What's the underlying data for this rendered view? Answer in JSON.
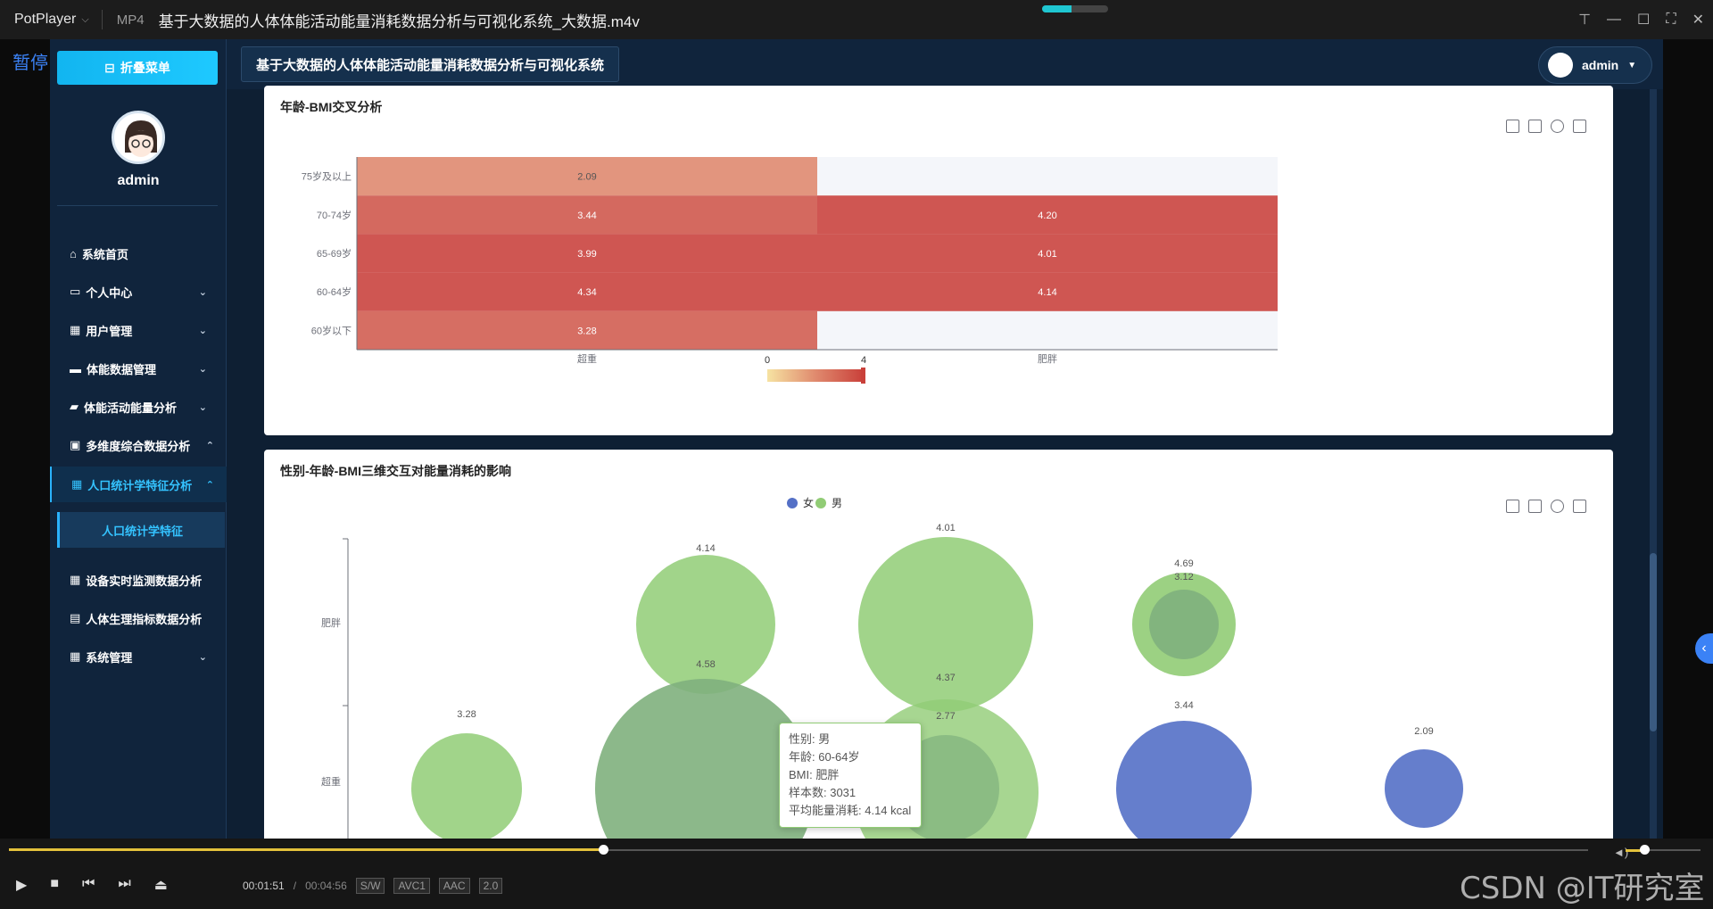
{
  "player": {
    "app_name": "PotPlayer",
    "format": "MP4",
    "file_title": "基于大数据的人体体能活动能量消耗数据分析与可视化系统_大数据.m4v",
    "pause_label": "暂停",
    "time_current": "00:01:51",
    "time_total": "00:04:56",
    "tags": [
      "S/W",
      "AVC1",
      "AAC",
      "2.0"
    ],
    "progress_fraction": 0.375,
    "volume_fraction": 0.2,
    "watermark": "CSDN @IT研究室"
  },
  "sidebar": {
    "collapse_label": "折叠菜单",
    "username": "admin",
    "items": [
      {
        "label": "系统首页",
        "icon": "home-icon",
        "chevron": false
      },
      {
        "label": "个人中心",
        "icon": "profile-icon",
        "chevron": true
      },
      {
        "label": "用户管理",
        "icon": "grid-icon",
        "chevron": true
      },
      {
        "label": "体能数据管理",
        "icon": "ticket-icon",
        "chevron": true
      },
      {
        "label": "体能活动能量分析",
        "icon": "fire-icon",
        "chevron": true
      },
      {
        "label": "多维度综合数据分析",
        "icon": "briefcase-icon",
        "chevron": true
      },
      {
        "label": "人口统计学特征分析",
        "icon": "grid-icon",
        "chevron": true,
        "active": true
      },
      {
        "label": "设备实时监测数据分析",
        "icon": "grid-icon",
        "chevron": false
      },
      {
        "label": "人体生理指标数据分析",
        "icon": "clipboard-icon",
        "chevron": false
      },
      {
        "label": "系统管理",
        "icon": "grid-icon",
        "chevron": true
      }
    ],
    "sub_item": "人口统计学特征"
  },
  "header": {
    "page_title": "基于大数据的人体体能活动能量消耗数据分析与可视化系统",
    "user": "admin"
  },
  "chart_data": [
    {
      "type": "heatmap",
      "title": "年龄-BMI交叉分析",
      "x_categories": [
        "超重",
        "肥胖"
      ],
      "y_categories": [
        "60岁以下",
        "60-64岁",
        "65-69岁",
        "70-74岁",
        "75岁及以上"
      ],
      "cells": [
        {
          "x": "超重",
          "y": "75岁及以上",
          "value": 2.09
        },
        {
          "x": "超重",
          "y": "70-74岁",
          "value": 3.44
        },
        {
          "x": "超重",
          "y": "65-69岁",
          "value": 3.99
        },
        {
          "x": "超重",
          "y": "60-64岁",
          "value": 4.34
        },
        {
          "x": "超重",
          "y": "60岁以下",
          "value": 3.28
        },
        {
          "x": "肥胖",
          "y": "70-74岁",
          "value": 4.2
        },
        {
          "x": "肥胖",
          "y": "65-69岁",
          "value": 4.01
        },
        {
          "x": "肥胖",
          "y": "60-64岁",
          "value": 4.14
        }
      ],
      "visual_map": {
        "min": 0,
        "max": 4,
        "min_label": "0",
        "max_label": "4",
        "colors": [
          "#f6e3a2",
          "#e08a6e",
          "#c9403a"
        ]
      }
    },
    {
      "type": "scatter",
      "title": "性别-年龄-BMI三维交互对能量消耗的影响",
      "legend": [
        "女",
        "男"
      ],
      "legend_colors": [
        "#5470c6",
        "#91cc75"
      ],
      "y_categories": [
        "超重",
        "肥胖"
      ],
      "visible_labels": [
        "4.14",
        "4.01",
        "4.69",
        "3.12",
        "4.58",
        "4.37",
        "2.77",
        "3.28",
        "3.44",
        "2.09"
      ],
      "tooltip": {
        "lines": [
          "性别: 男",
          "年龄: 60-64岁",
          "BMI: 肥胖",
          "样本数: 3031",
          "平均能量消耗: 4.14 kcal"
        ]
      }
    }
  ]
}
